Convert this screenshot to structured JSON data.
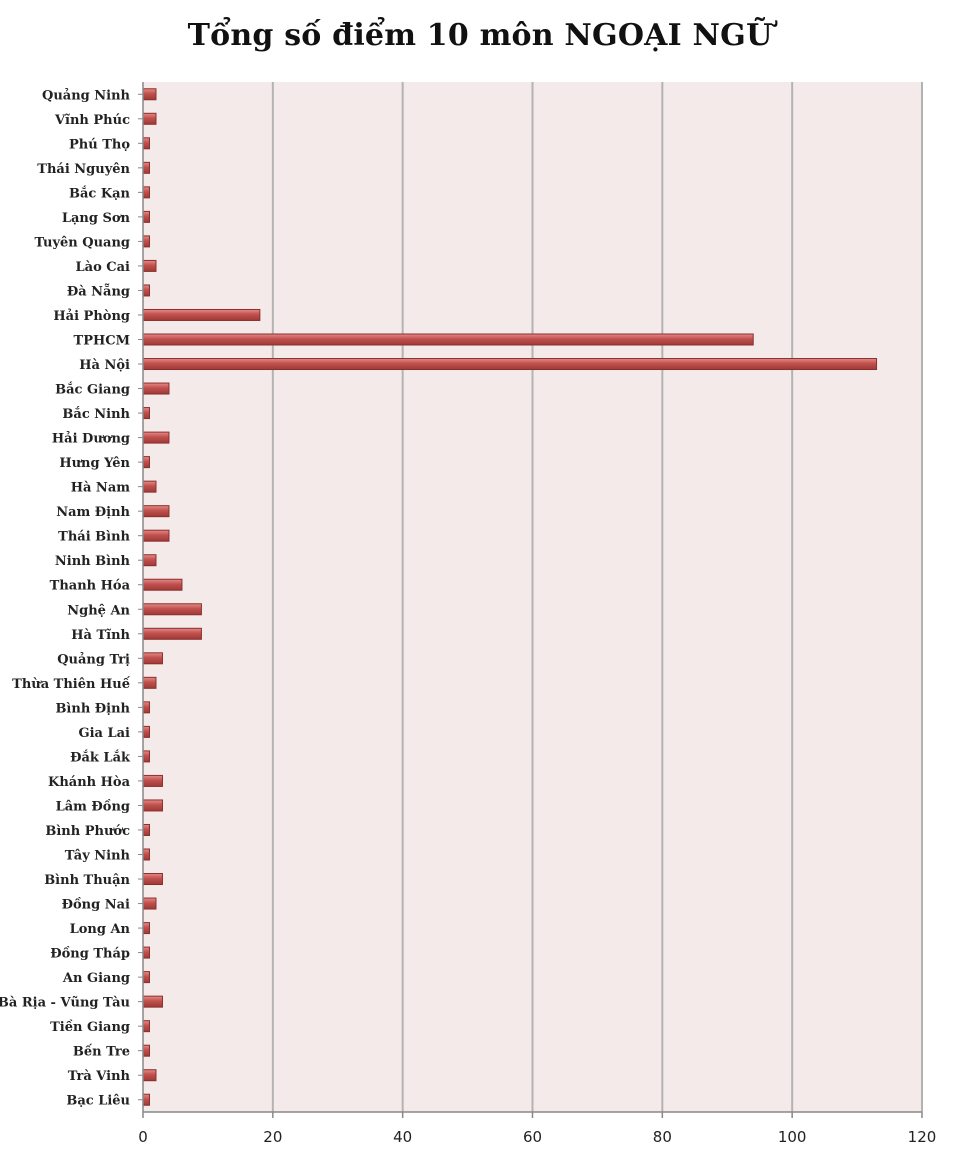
{
  "chart_data": {
    "type": "bar",
    "orientation": "horizontal",
    "title": "Tổng số điểm 10 môn NGOẠI NGỮ",
    "xlabel": "",
    "ylabel": "",
    "xlim": [
      0,
      120
    ],
    "x_ticks": [
      0,
      20,
      40,
      60,
      80,
      100,
      120
    ],
    "grid": "vertical",
    "bar_color": "#c0504d",
    "plot_background": "#f5eaea",
    "categories": [
      "Quảng Ninh",
      "Vĩnh Phúc",
      "Phú Thọ",
      "Thái Nguyên",
      "Bắc Kạn",
      "Lạng Sơn",
      "Tuyên Quang",
      "Lào Cai",
      "Đà Nẵng",
      "Hải Phòng",
      "TPHCM",
      "Hà Nội",
      "Bắc Giang",
      "Bắc Ninh",
      "Hải Dương",
      "Hưng Yên",
      "Hà Nam",
      "Nam Định",
      "Thái Bình",
      "Ninh Bình",
      "Thanh Hóa",
      "Nghệ An",
      "Hà Tĩnh",
      "Quảng Trị",
      "Thừa Thiên Huế",
      "Bình Định",
      "Gia Lai",
      "Đắk Lắk",
      "Khánh Hòa",
      "Lâm Đồng",
      "Bình Phước",
      "Tây Ninh",
      "Bình Thuận",
      "Đồng Nai",
      "Long An",
      "Đồng Tháp",
      "An Giang",
      "Bà Rịa - Vũng Tàu",
      "Tiền Giang",
      "Bến Tre",
      "Trà Vinh",
      "Bạc Liêu"
    ],
    "values": [
      2,
      2,
      1,
      1,
      1,
      1,
      1,
      2,
      1,
      18,
      94,
      113,
      4,
      1,
      4,
      1,
      2,
      4,
      4,
      2,
      6,
      9,
      9,
      3,
      2,
      1,
      1,
      1,
      3,
      3,
      1,
      1,
      3,
      2,
      1,
      1,
      1,
      3,
      1,
      1,
      2,
      1
    ]
  }
}
